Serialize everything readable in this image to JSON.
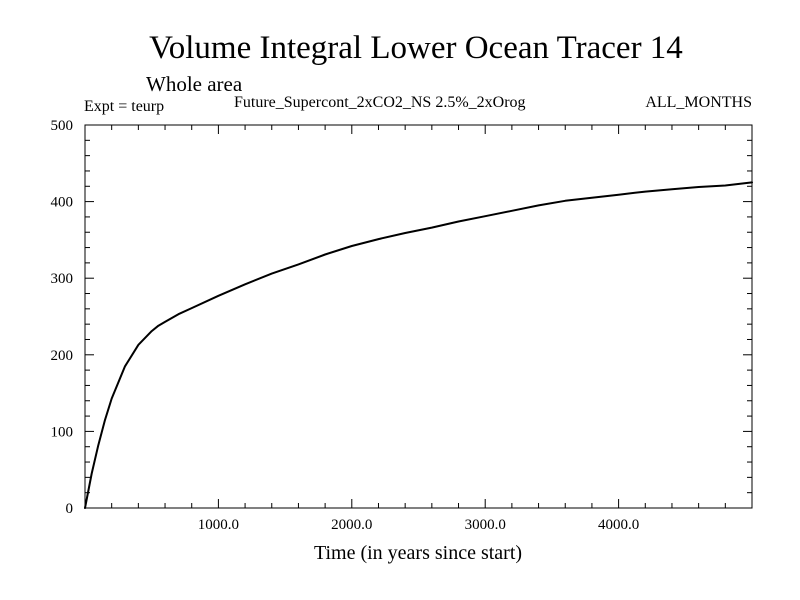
{
  "chart_data": {
    "type": "line",
    "title": "Volume Integral Lower Ocean Tracer 14",
    "subtitle": "Whole area",
    "experiment": "Expt = teurp",
    "run_name": "Future_Supercont_2xCO2_NS 2.5%_2xOrog",
    "months": "ALL_MONTHS",
    "xlabel": "Time (in years since start)",
    "ylabel": "",
    "xlim": [
      0,
      5000
    ],
    "ylim": [
      0,
      500
    ],
    "x_ticks": [
      1000,
      2000,
      3000,
      4000
    ],
    "x_tick_labels": [
      "1000.0",
      "2000.0",
      "3000.0",
      "4000.0"
    ],
    "y_ticks": [
      0,
      100,
      200,
      300,
      400,
      500
    ],
    "y_tick_labels": [
      "0",
      "100",
      "200",
      "300",
      "400",
      "500"
    ],
    "grid": false,
    "line_color": "#000000",
    "series": [
      {
        "x": [
          0,
          50,
          100,
          150,
          200,
          300,
          400,
          500,
          550,
          600,
          700,
          800,
          1000,
          1200,
          1400,
          1600,
          1800,
          2000,
          2200,
          2400,
          2600,
          2800,
          3000,
          3200,
          3400,
          3600,
          3800,
          4000,
          4200,
          4400,
          4600,
          4800,
          5000
        ],
        "y": [
          0,
          45,
          82,
          115,
          143,
          185,
          213,
          231,
          238,
          243,
          253,
          261,
          277,
          292,
          306,
          318,
          331,
          342,
          351,
          359,
          366,
          374,
          381,
          388,
          395,
          401,
          405,
          409,
          413,
          416,
          419,
          421,
          425
        ]
      }
    ]
  }
}
